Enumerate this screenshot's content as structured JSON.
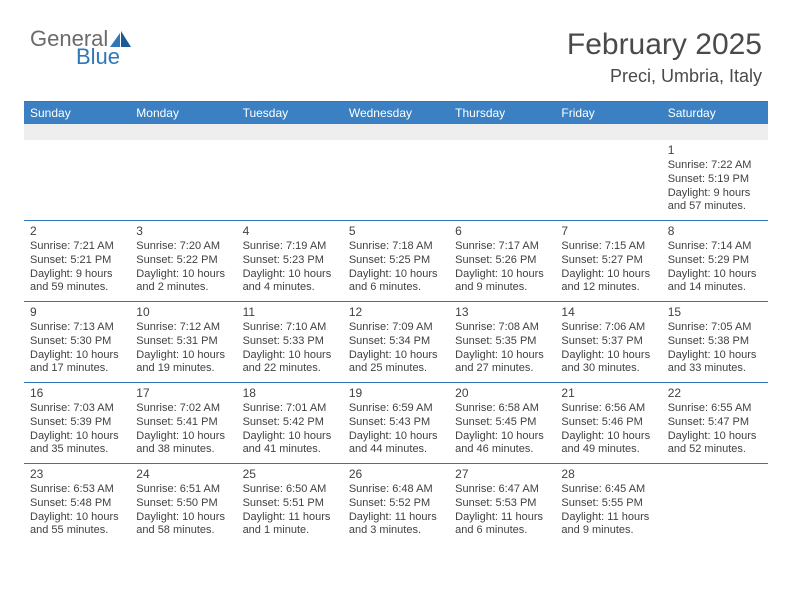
{
  "brand": {
    "part1": "General",
    "part2": "Blue"
  },
  "title": "February 2025",
  "location": "Preci, Umbria, Italy",
  "colors": {
    "header_bg": "#3a80c2",
    "border": "#2f77bb",
    "text": "#414141",
    "blank_bg": "#eeeeee",
    "white": "#ffffff"
  },
  "dow": [
    "Sunday",
    "Monday",
    "Tuesday",
    "Wednesday",
    "Thursday",
    "Friday",
    "Saturday"
  ],
  "weeks": [
    [
      null,
      null,
      null,
      null,
      null,
      null,
      {
        "n": "1",
        "sr": "Sunrise: 7:22 AM",
        "ss": "Sunset: 5:19 PM",
        "dl": "Daylight: 9 hours and 57 minutes."
      }
    ],
    [
      {
        "n": "2",
        "sr": "Sunrise: 7:21 AM",
        "ss": "Sunset: 5:21 PM",
        "dl": "Daylight: 9 hours and 59 minutes."
      },
      {
        "n": "3",
        "sr": "Sunrise: 7:20 AM",
        "ss": "Sunset: 5:22 PM",
        "dl": "Daylight: 10 hours and 2 minutes."
      },
      {
        "n": "4",
        "sr": "Sunrise: 7:19 AM",
        "ss": "Sunset: 5:23 PM",
        "dl": "Daylight: 10 hours and 4 minutes."
      },
      {
        "n": "5",
        "sr": "Sunrise: 7:18 AM",
        "ss": "Sunset: 5:25 PM",
        "dl": "Daylight: 10 hours and 6 minutes."
      },
      {
        "n": "6",
        "sr": "Sunrise: 7:17 AM",
        "ss": "Sunset: 5:26 PM",
        "dl": "Daylight: 10 hours and 9 minutes."
      },
      {
        "n": "7",
        "sr": "Sunrise: 7:15 AM",
        "ss": "Sunset: 5:27 PM",
        "dl": "Daylight: 10 hours and 12 minutes."
      },
      {
        "n": "8",
        "sr": "Sunrise: 7:14 AM",
        "ss": "Sunset: 5:29 PM",
        "dl": "Daylight: 10 hours and 14 minutes."
      }
    ],
    [
      {
        "n": "9",
        "sr": "Sunrise: 7:13 AM",
        "ss": "Sunset: 5:30 PM",
        "dl": "Daylight: 10 hours and 17 minutes."
      },
      {
        "n": "10",
        "sr": "Sunrise: 7:12 AM",
        "ss": "Sunset: 5:31 PM",
        "dl": "Daylight: 10 hours and 19 minutes."
      },
      {
        "n": "11",
        "sr": "Sunrise: 7:10 AM",
        "ss": "Sunset: 5:33 PM",
        "dl": "Daylight: 10 hours and 22 minutes."
      },
      {
        "n": "12",
        "sr": "Sunrise: 7:09 AM",
        "ss": "Sunset: 5:34 PM",
        "dl": "Daylight: 10 hours and 25 minutes."
      },
      {
        "n": "13",
        "sr": "Sunrise: 7:08 AM",
        "ss": "Sunset: 5:35 PM",
        "dl": "Daylight: 10 hours and 27 minutes."
      },
      {
        "n": "14",
        "sr": "Sunrise: 7:06 AM",
        "ss": "Sunset: 5:37 PM",
        "dl": "Daylight: 10 hours and 30 minutes."
      },
      {
        "n": "15",
        "sr": "Sunrise: 7:05 AM",
        "ss": "Sunset: 5:38 PM",
        "dl": "Daylight: 10 hours and 33 minutes."
      }
    ],
    [
      {
        "n": "16",
        "sr": "Sunrise: 7:03 AM",
        "ss": "Sunset: 5:39 PM",
        "dl": "Daylight: 10 hours and 35 minutes."
      },
      {
        "n": "17",
        "sr": "Sunrise: 7:02 AM",
        "ss": "Sunset: 5:41 PM",
        "dl": "Daylight: 10 hours and 38 minutes."
      },
      {
        "n": "18",
        "sr": "Sunrise: 7:01 AM",
        "ss": "Sunset: 5:42 PM",
        "dl": "Daylight: 10 hours and 41 minutes."
      },
      {
        "n": "19",
        "sr": "Sunrise: 6:59 AM",
        "ss": "Sunset: 5:43 PM",
        "dl": "Daylight: 10 hours and 44 minutes."
      },
      {
        "n": "20",
        "sr": "Sunrise: 6:58 AM",
        "ss": "Sunset: 5:45 PM",
        "dl": "Daylight: 10 hours and 46 minutes."
      },
      {
        "n": "21",
        "sr": "Sunrise: 6:56 AM",
        "ss": "Sunset: 5:46 PM",
        "dl": "Daylight: 10 hours and 49 minutes."
      },
      {
        "n": "22",
        "sr": "Sunrise: 6:55 AM",
        "ss": "Sunset: 5:47 PM",
        "dl": "Daylight: 10 hours and 52 minutes."
      }
    ],
    [
      {
        "n": "23",
        "sr": "Sunrise: 6:53 AM",
        "ss": "Sunset: 5:48 PM",
        "dl": "Daylight: 10 hours and 55 minutes."
      },
      {
        "n": "24",
        "sr": "Sunrise: 6:51 AM",
        "ss": "Sunset: 5:50 PM",
        "dl": "Daylight: 10 hours and 58 minutes."
      },
      {
        "n": "25",
        "sr": "Sunrise: 6:50 AM",
        "ss": "Sunset: 5:51 PM",
        "dl": "Daylight: 11 hours and 1 minute."
      },
      {
        "n": "26",
        "sr": "Sunrise: 6:48 AM",
        "ss": "Sunset: 5:52 PM",
        "dl": "Daylight: 11 hours and 3 minutes."
      },
      {
        "n": "27",
        "sr": "Sunrise: 6:47 AM",
        "ss": "Sunset: 5:53 PM",
        "dl": "Daylight: 11 hours and 6 minutes."
      },
      {
        "n": "28",
        "sr": "Sunrise: 6:45 AM",
        "ss": "Sunset: 5:55 PM",
        "dl": "Daylight: 11 hours and 9 minutes."
      },
      null
    ]
  ]
}
